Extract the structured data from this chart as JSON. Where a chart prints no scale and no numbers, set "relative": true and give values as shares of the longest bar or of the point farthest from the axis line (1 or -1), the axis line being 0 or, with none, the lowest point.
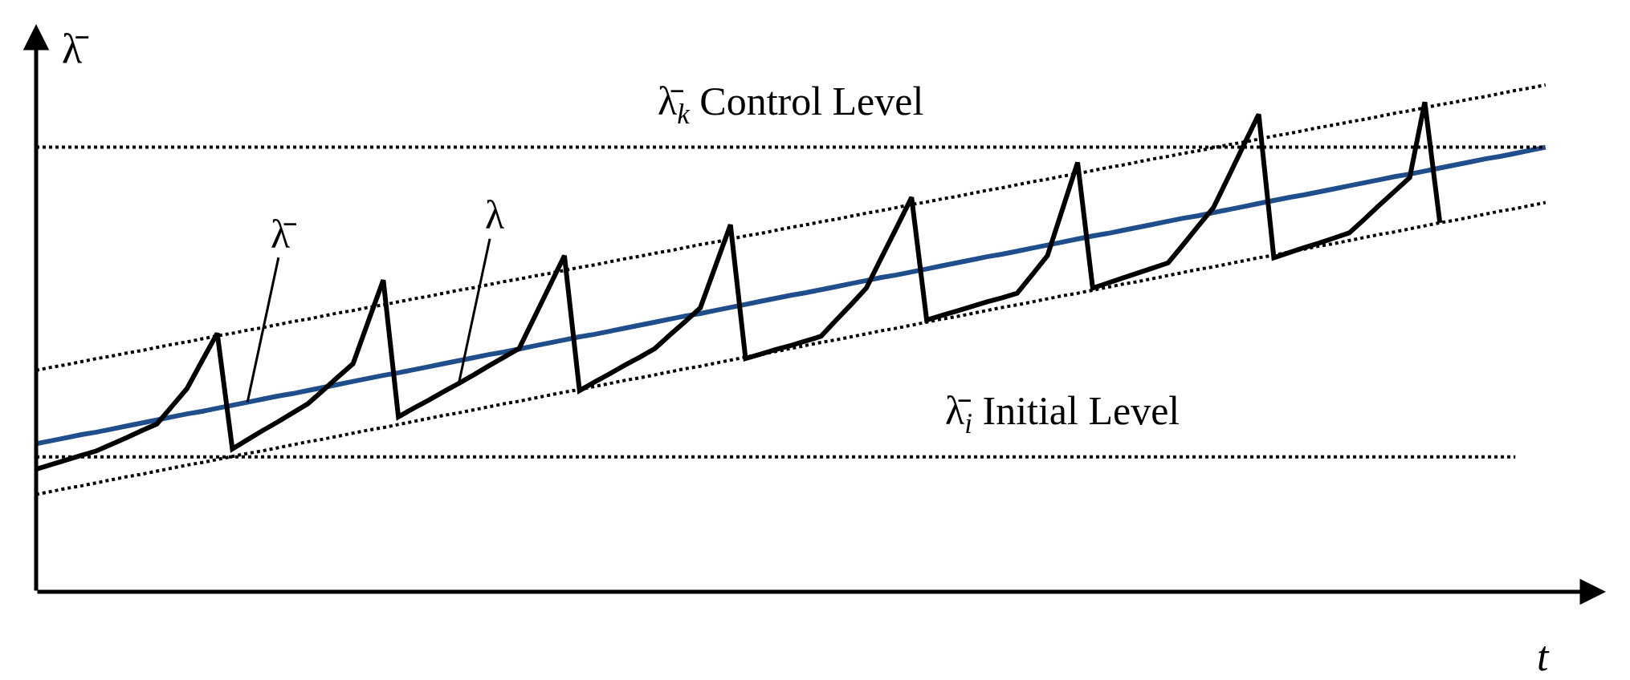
{
  "chart_data": {
    "type": "line",
    "relative": true,
    "xlabel": "t",
    "ylabel": "λ̄",
    "marker": "none",
    "categories": [
      null,
      null,
      null,
      null,
      null,
      null,
      null,
      null,
      null,
      null,
      null,
      null,
      null,
      null,
      null,
      null,
      null,
      null,
      null,
      null,
      null,
      null,
      null,
      null,
      null,
      null,
      null,
      null,
      null,
      null,
      null,
      null,
      null,
      null,
      null,
      null,
      null,
      null,
      null,
      null,
      null,
      null,
      null,
      null,
      null,
      null,
      null,
      null,
      null,
      null,
      null,
      null,
      null,
      null,
      null,
      null,
      null,
      null,
      null,
      null,
      null,
      null,
      null,
      null,
      null,
      null,
      null,
      null,
      null,
      null,
      null,
      null,
      null,
      null,
      null,
      null,
      null,
      null,
      null,
      null,
      null,
      null,
      null,
      null,
      null,
      null,
      null,
      null,
      null,
      null,
      null,
      null,
      null,
      null,
      null,
      null,
      null,
      null,
      null,
      null,
      null
    ],
    "series": [
      {
        "color": "#1f4e8c",
        "line_style": "solid",
        "values": [
          0.292,
          0.298,
          0.304,
          0.31,
          0.315,
          0.321,
          0.327,
          0.333,
          0.339,
          0.345,
          0.351,
          0.356,
          0.362,
          0.368,
          0.374,
          0.38,
          0.386,
          0.391,
          0.397,
          0.403,
          0.409,
          0.415,
          0.421,
          0.427,
          0.432,
          0.438,
          0.444,
          0.45,
          0.456,
          0.462,
          0.468,
          0.473,
          0.479,
          0.485,
          0.491,
          0.497,
          0.503,
          0.508,
          0.514,
          0.52,
          0.526,
          0.532,
          0.538,
          0.544,
          0.549,
          0.555,
          0.561,
          0.567,
          0.573,
          0.579,
          0.585,
          0.59,
          0.596,
          0.602,
          0.608,
          0.614,
          0.62,
          0.625,
          0.631,
          0.637,
          0.643,
          0.649,
          0.655,
          0.661,
          0.666,
          0.672,
          0.678,
          0.684,
          0.69,
          0.696,
          0.702,
          0.707,
          0.713,
          0.719,
          0.725,
          0.731,
          0.737,
          0.742,
          0.748,
          0.754,
          0.76,
          0.766,
          0.772,
          0.778,
          0.783,
          0.789,
          0.795,
          0.801,
          0.807,
          0.813,
          0.819,
          0.824,
          0.83,
          0.836,
          0.842,
          0.848,
          0.854,
          0.859,
          0.865,
          0.871,
          0.877
        ]
      },
      {
        "color": "#000000",
        "line_style": "solid",
        "values": [
          0.242,
          0.251,
          0.26,
          0.269,
          0.278,
          0.291,
          0.304,
          0.318,
          0.331,
          0.366,
          0.401,
          0.456,
          0.51,
          0.282,
          0.3,
          0.318,
          0.335,
          0.353,
          0.371,
          0.397,
          0.424,
          0.45,
          0.533,
          0.615,
          0.345,
          0.362,
          0.378,
          0.395,
          0.411,
          0.428,
          0.446,
          0.463,
          0.48,
          0.541,
          0.602,
          0.663,
          0.397,
          0.414,
          0.43,
          0.447,
          0.463,
          0.48,
          0.507,
          0.533,
          0.56,
          0.642,
          0.724,
          0.46,
          0.469,
          0.478,
          0.486,
          0.495,
          0.504,
          0.536,
          0.567,
          0.599,
          0.659,
          0.718,
          0.778,
          0.536,
          0.545,
          0.554,
          0.563,
          0.572,
          0.58,
          0.589,
          0.626,
          0.663,
          0.755,
          0.847,
          0.599,
          0.609,
          0.619,
          0.629,
          0.639,
          0.649,
          0.685,
          0.722,
          0.758,
          0.819,
          0.881,
          0.942,
          0.659,
          0.669,
          0.679,
          0.688,
          0.698,
          0.708,
          0.735,
          0.763,
          0.79,
          0.817,
          0.966,
          0.728,
          null,
          null,
          null,
          null,
          null,
          null,
          null
        ]
      },
      {
        "color": "#000000",
        "line_style": "dotted",
        "values": [
          0.437,
          0.443,
          0.448,
          0.454,
          0.46,
          0.465,
          0.471,
          0.476,
          0.482,
          0.488,
          0.493,
          0.499,
          0.505,
          0.51,
          0.516,
          0.521,
          0.527,
          0.533,
          0.538,
          0.544,
          0.55,
          0.555,
          0.561,
          0.566,
          0.572,
          0.578,
          0.583,
          0.589,
          0.595,
          0.6,
          0.606,
          0.612,
          0.617,
          0.623,
          0.628,
          0.634,
          0.64,
          0.645,
          0.651,
          0.657,
          0.662,
          0.668,
          0.673,
          0.679,
          0.685,
          0.69,
          0.696,
          0.702,
          0.707,
          0.713,
          0.719,
          0.724,
          0.73,
          0.735,
          0.741,
          0.747,
          0.752,
          0.758,
          0.764,
          0.769,
          0.775,
          0.78,
          0.786,
          0.792,
          0.797,
          0.803,
          0.809,
          0.814,
          0.82,
          0.825,
          0.831,
          0.837,
          0.842,
          0.848,
          0.854,
          0.859,
          0.865,
          0.87,
          0.876,
          0.882,
          0.887,
          0.893,
          0.899,
          0.904,
          0.91,
          0.916,
          0.921,
          0.927,
          0.932,
          0.938,
          0.944,
          0.949,
          0.955,
          0.961,
          0.966,
          0.972,
          0.977,
          0.983,
          0.989,
          0.994,
          1.0
        ]
      },
      {
        "color": "#000000",
        "line_style": "dotted",
        "values": [
          0.192,
          0.198,
          0.204,
          0.209,
          0.215,
          0.221,
          0.227,
          0.232,
          0.238,
          0.244,
          0.25,
          0.255,
          0.261,
          0.267,
          0.273,
          0.278,
          0.284,
          0.29,
          0.296,
          0.301,
          0.307,
          0.313,
          0.319,
          0.324,
          0.33,
          0.336,
          0.342,
          0.348,
          0.353,
          0.359,
          0.365,
          0.371,
          0.376,
          0.382,
          0.388,
          0.394,
          0.399,
          0.405,
          0.411,
          0.417,
          0.422,
          0.428,
          0.434,
          0.44,
          0.445,
          0.451,
          0.457,
          0.463,
          0.468,
          0.474,
          0.48,
          0.486,
          0.492,
          0.497,
          0.503,
          0.509,
          0.515,
          0.52,
          0.526,
          0.532,
          0.538,
          0.543,
          0.549,
          0.555,
          0.561,
          0.566,
          0.572,
          0.578,
          0.584,
          0.589,
          0.595,
          0.601,
          0.607,
          0.612,
          0.618,
          0.624,
          0.63,
          0.636,
          0.641,
          0.647,
          0.653,
          0.659,
          0.664,
          0.67,
          0.676,
          0.682,
          0.687,
          0.693,
          0.699,
          0.705,
          0.71,
          0.716,
          0.722,
          0.728,
          0.733,
          0.739,
          0.745,
          0.751,
          0.756,
          0.762,
          0.768
        ]
      }
    ],
    "ref_lines": [
      {
        "axis": "y",
        "value": 0.877,
        "label": "λ̄$_{k}$ Control Level",
        "color": "#000000",
        "line_style": "dotted"
      },
      {
        "axis": "y",
        "value": 0.266,
        "label": "λ̄$_{i}$ Initial Level",
        "color": "#000000",
        "line_style": "dotted"
      }
    ],
    "annotations": [
      "λ̄",
      "λ"
    ]
  }
}
